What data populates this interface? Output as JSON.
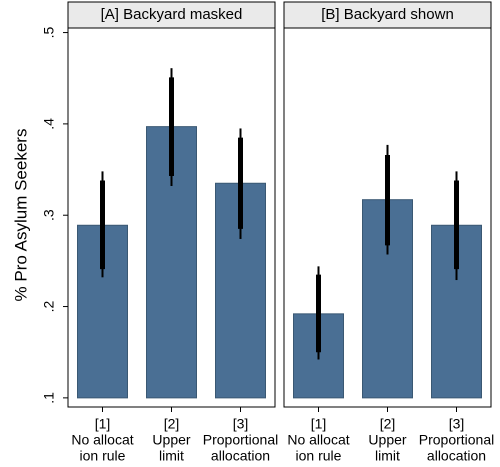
{
  "chart_data": [
    {
      "type": "bar",
      "title": "[A] Backyard masked",
      "ylabel": "% Pro Asylum Seekers",
      "categories": [
        [
          "[1]",
          "No allocat",
          "ion rule"
        ],
        [
          "[2]",
          "Upper",
          "limit"
        ],
        [
          "[3]",
          "Proportional",
          "allocation"
        ]
      ],
      "values": [
        0.289,
        0.397,
        0.335
      ],
      "error_low": [
        0.232,
        0.332,
        0.274
      ],
      "error_high": [
        0.348,
        0.461,
        0.395
      ],
      "error_low_inner": [
        0.241,
        0.343,
        0.285
      ],
      "error_high_inner": [
        0.338,
        0.451,
        0.385
      ],
      "color": "#4a6f94",
      "ylim": [
        0.09,
        0.505
      ],
      "yticks": [
        {
          "value": 0.1,
          "label": ".1"
        },
        {
          "value": 0.2,
          "label": ".2"
        },
        {
          "value": 0.3,
          "label": ".3"
        },
        {
          "value": 0.4,
          "label": ".4"
        },
        {
          "value": 0.5,
          "label": ".5"
        }
      ]
    },
    {
      "type": "bar",
      "title": "[B] Backyard shown",
      "categories": [
        [
          "[1]",
          "No allocat",
          "ion rule"
        ],
        [
          "[2]",
          "Upper",
          "limit"
        ],
        [
          "[3]",
          "Proportional",
          "allocation"
        ]
      ],
      "values": [
        0.192,
        0.317,
        0.289
      ],
      "error_low": [
        0.142,
        0.257,
        0.229
      ],
      "error_high": [
        0.244,
        0.377,
        0.348
      ],
      "error_low_inner": [
        0.15,
        0.267,
        0.241
      ],
      "error_high_inner": [
        0.235,
        0.366,
        0.338
      ],
      "color": "#4a6f94",
      "ylim": [
        0.09,
        0.505
      ]
    }
  ]
}
